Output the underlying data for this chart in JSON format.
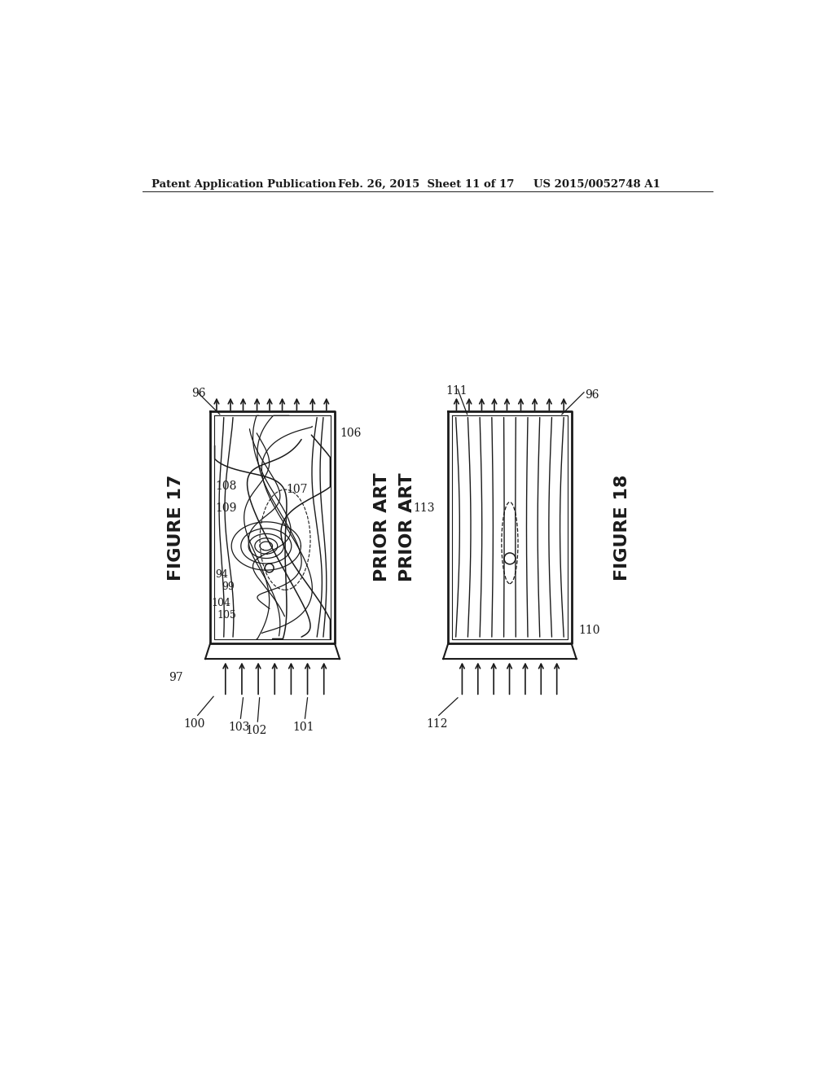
{
  "header_left": "Patent Application Publication",
  "header_mid": "Feb. 26, 2015  Sheet 11 of 17",
  "header_right": "US 2015/0052748 A1",
  "bg_color": "#ffffff",
  "line_color": "#1a1a1a",
  "fig17_label": "FIGURE 17",
  "fig18_label": "FIGURE 18",
  "prior_art_label": "PRIOR ART"
}
